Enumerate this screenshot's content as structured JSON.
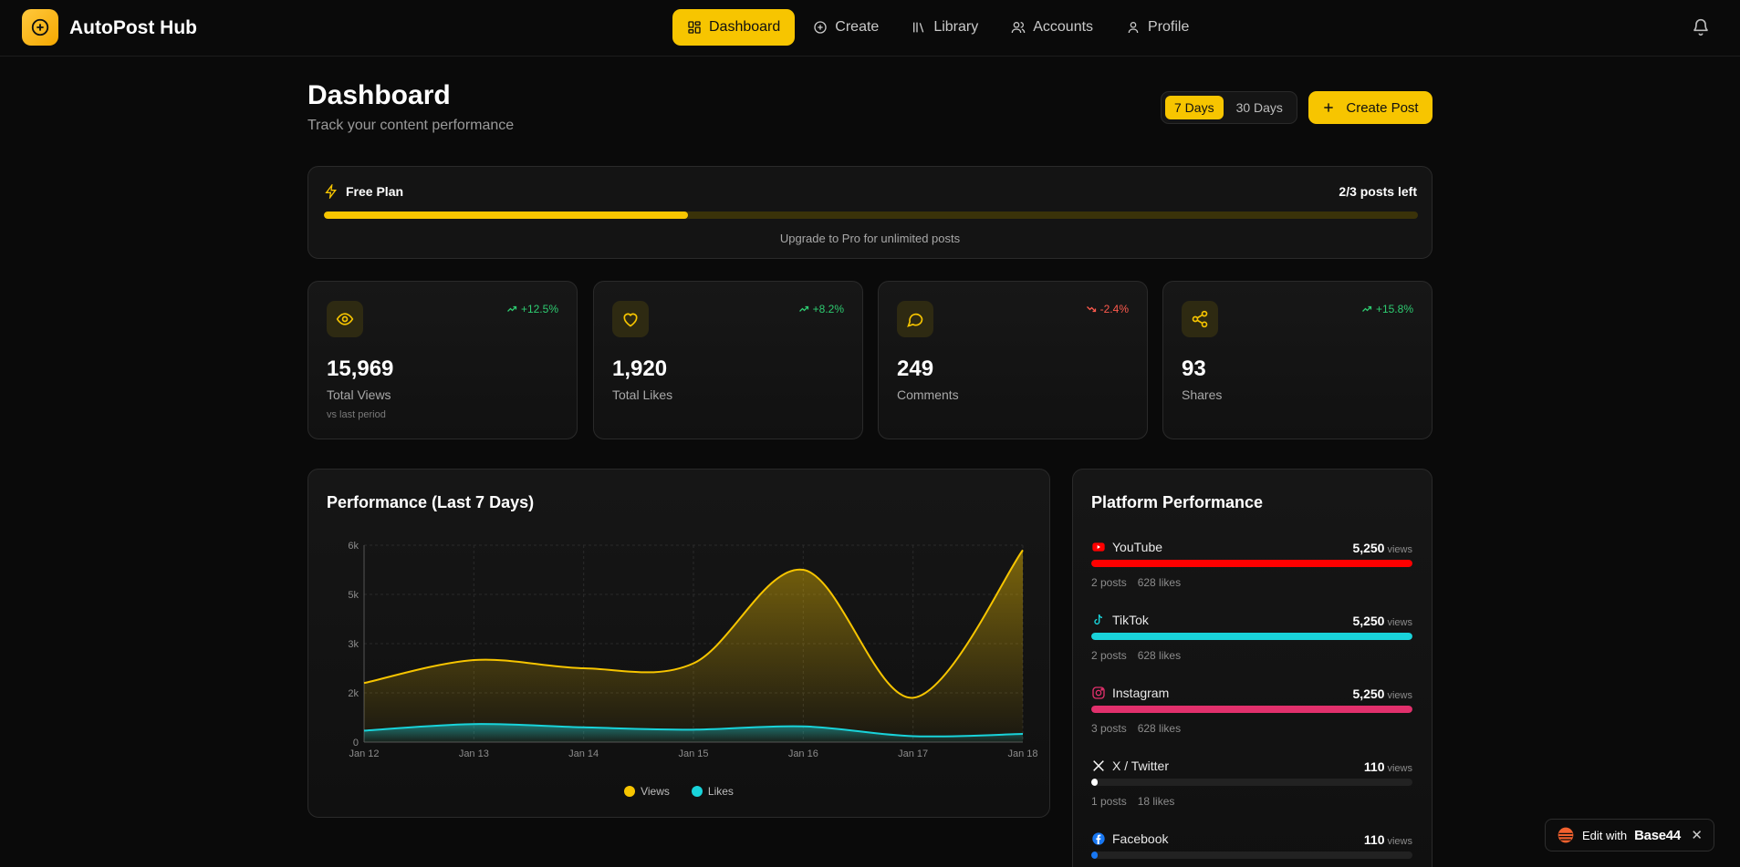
{
  "app": {
    "brand": "AutoPost Hub"
  },
  "nav": {
    "items": [
      {
        "label": "Dashboard",
        "icon": "grid-icon",
        "active": true
      },
      {
        "label": "Create",
        "icon": "plus-circle-icon"
      },
      {
        "label": "Library",
        "icon": "library-icon"
      },
      {
        "label": "Accounts",
        "icon": "users-icon"
      },
      {
        "label": "Profile",
        "icon": "user-icon"
      }
    ]
  },
  "page": {
    "title": "Dashboard",
    "subtitle": "Track your content performance"
  },
  "range": {
    "options": [
      "7 Days",
      "30 Days"
    ],
    "selected": "7 Days"
  },
  "create_button": "Create Post",
  "plan": {
    "name": "Free Plan",
    "remaining": "2/3 posts left",
    "progress": 0.333,
    "note": "Upgrade to Pro for unlimited posts"
  },
  "stats": [
    {
      "icon": "eye-icon",
      "change": "+12.5%",
      "trend": "up",
      "value": "15,969",
      "label": "Total Views",
      "note": "vs last period"
    },
    {
      "icon": "heart-icon",
      "change": "+8.2%",
      "trend": "up",
      "value": "1,920",
      "label": "Total Likes",
      "note": ""
    },
    {
      "icon": "comment-icon",
      "change": "-2.4%",
      "trend": "down",
      "value": "249",
      "label": "Comments",
      "note": ""
    },
    {
      "icon": "share-icon",
      "change": "+15.8%",
      "trend": "up",
      "value": "93",
      "label": "Shares",
      "note": ""
    }
  ],
  "performance": {
    "title": "Performance (Last 7 Days)"
  },
  "chart_data": {
    "type": "area",
    "title": "Performance (Last 7 Days)",
    "categories": [
      "Jan 12",
      "Jan 13",
      "Jan 14",
      "Jan 15",
      "Jan 16",
      "Jan 17",
      "Jan 18"
    ],
    "y_ticks": [
      "0",
      "2k",
      "3k",
      "5k",
      "6k"
    ],
    "y_tick_values": [
      0,
      1500,
      3000,
      4500,
      6000
    ],
    "ylim": [
      0,
      6000
    ],
    "series": [
      {
        "name": "Views",
        "color": "#f7c500",
        "values": [
          1800,
          2500,
          2250,
          2400,
          5250,
          1350,
          5850
        ]
      },
      {
        "name": "Likes",
        "color": "#19d3da",
        "values": [
          350,
          550,
          450,
          380,
          480,
          180,
          250
        ]
      }
    ],
    "legend": "bottom"
  },
  "platforms": {
    "title": "Platform Performance",
    "views_unit": "views",
    "items": [
      {
        "name": "YouTube",
        "icon": "youtube-icon",
        "views": "5,250",
        "fill": 1.0,
        "color": "#ff0000",
        "posts": "2 posts",
        "likes": "628 likes"
      },
      {
        "name": "TikTok",
        "icon": "tiktok-icon",
        "views": "5,250",
        "fill": 1.0,
        "color": "#19d3da",
        "posts": "2 posts",
        "likes": "628 likes"
      },
      {
        "name": "Instagram",
        "icon": "instagram-icon",
        "views": "5,250",
        "fill": 1.0,
        "color": "#e1306c",
        "posts": "3 posts",
        "likes": "628 likes"
      },
      {
        "name": "X / Twitter",
        "icon": "x-icon",
        "views": "110",
        "fill": 0.021,
        "color": "#ffffff",
        "posts": "1 posts",
        "likes": "18 likes"
      },
      {
        "name": "Facebook",
        "icon": "facebook-icon",
        "views": "110",
        "fill": 0.021,
        "color": "#1877f2",
        "posts": "",
        "likes": ""
      }
    ]
  },
  "edit_badge": {
    "prefix": "Edit with",
    "brand": "Base44"
  }
}
